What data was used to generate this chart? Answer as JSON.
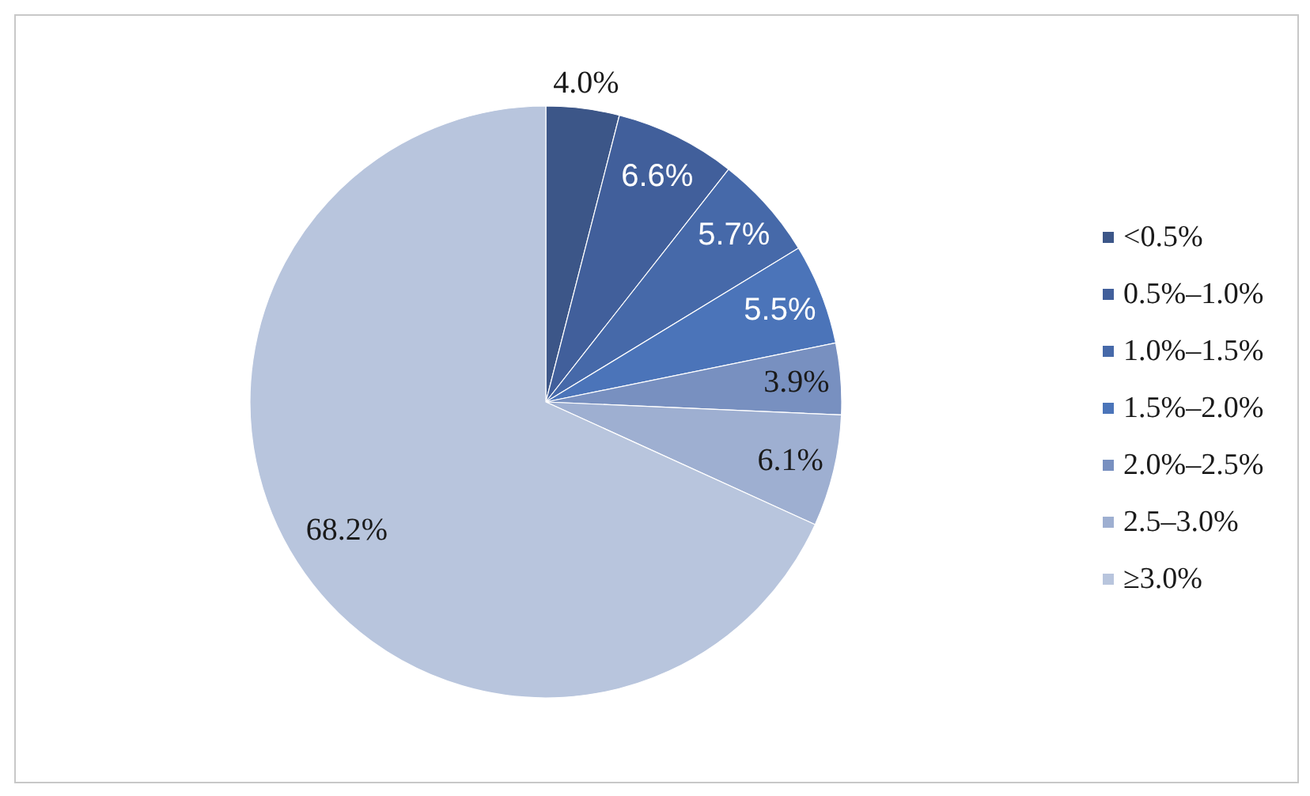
{
  "chart_data": {
    "type": "pie",
    "categories": [
      "<0.5%",
      "0.5%–1.0%",
      "1.0%–1.5%",
      "1.5%–2.0%",
      "2.0%–2.5%",
      "2.5–3.0%",
      "≥3.0%"
    ],
    "values": [
      4.0,
      6.6,
      5.7,
      5.5,
      3.9,
      6.1,
      68.2
    ],
    "colors": [
      "#3c5688",
      "#415f9b",
      "#4669a9",
      "#4b74b9",
      "#7890c0",
      "#9eafd1",
      "#b8c5dd"
    ],
    "value_labels": [
      "4.0%",
      "6.6%",
      "5.7%",
      "5.5%",
      "3.9%",
      "6.1%",
      "68.2%"
    ],
    "legend": "right"
  }
}
